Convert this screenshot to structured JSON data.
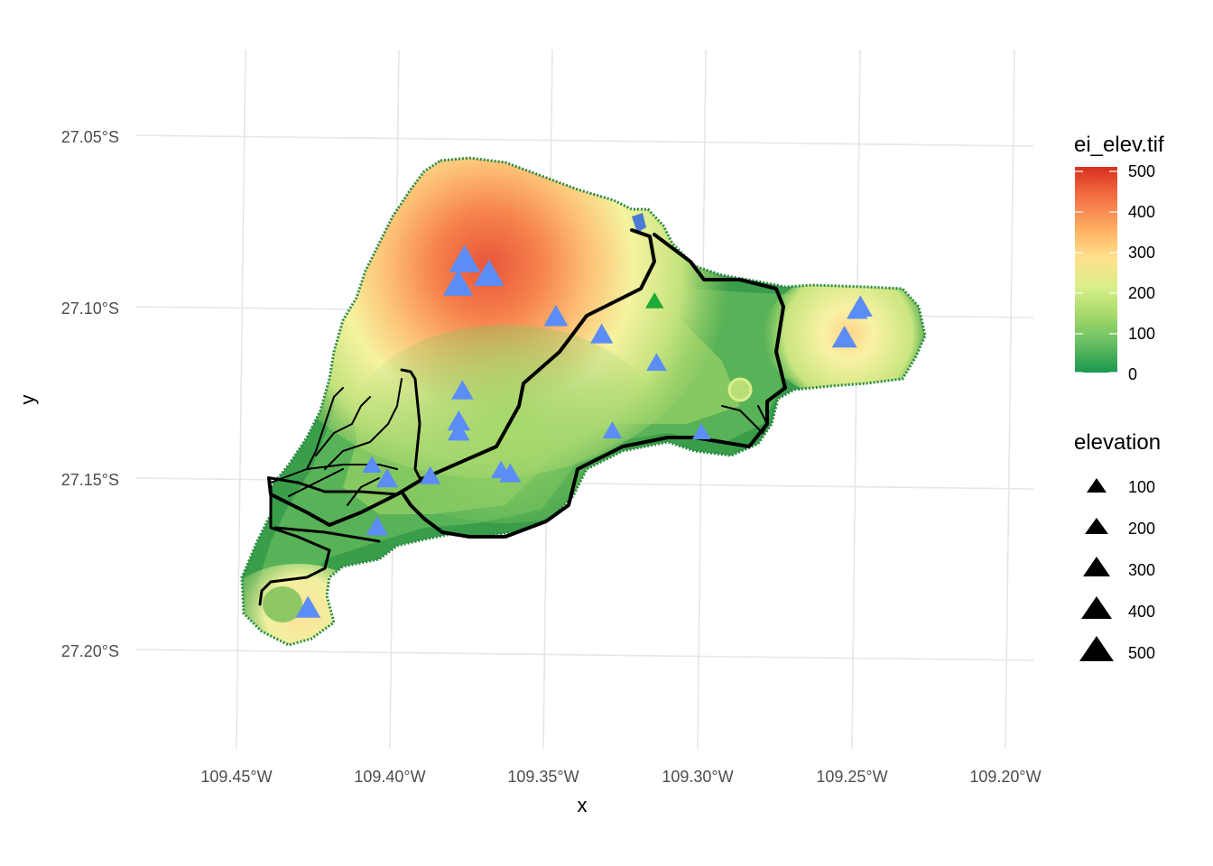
{
  "plot": {
    "x_axis_title": "x",
    "y_axis_title": "y",
    "x_tick_labels": [
      "109.45°W",
      "109.40°W",
      "109.35°W",
      "109.30°W",
      "109.25°W",
      "109.20°W"
    ],
    "y_tick_labels": [
      "27.05°S",
      "27.10°S",
      "27.15°S",
      "27.20°S"
    ]
  },
  "legend_raster": {
    "title": "ei_elev.tif",
    "breaks": [
      "500",
      "400",
      "300",
      "200",
      "100",
      "0"
    ],
    "colors": [
      "#d7301f",
      "#f46d43",
      "#fdae61",
      "#fee08b",
      "#d9ef8b",
      "#a6d96a",
      "#66bd63",
      "#1a9850"
    ]
  },
  "legend_points": {
    "title": "elevation",
    "labels": [
      "100",
      "200",
      "300",
      "400",
      "500"
    ]
  },
  "map_data": {
    "crs_units": "degrees",
    "peaks_blue": [
      {
        "lon": -109.378,
        "lat": -27.086,
        "elev": 510
      },
      {
        "lon": -109.37,
        "lat": -27.09,
        "elev": 480
      },
      {
        "lon": -109.38,
        "lat": -27.093,
        "elev": 470
      },
      {
        "lon": -109.348,
        "lat": -27.102,
        "elev": 300
      },
      {
        "lon": -109.333,
        "lat": -27.107,
        "elev": 250
      },
      {
        "lon": -109.315,
        "lat": -27.115,
        "elev": 180
      },
      {
        "lon": -109.378,
        "lat": -27.124,
        "elev": 230
      },
      {
        "lon": -109.379,
        "lat": -27.133,
        "elev": 260
      },
      {
        "lon": -109.379,
        "lat": -27.136,
        "elev": 230
      },
      {
        "lon": -109.329,
        "lat": -27.135,
        "elev": 150
      },
      {
        "lon": -109.3,
        "lat": -27.135,
        "elev": 120
      },
      {
        "lon": -109.407,
        "lat": -27.146,
        "elev": 150
      },
      {
        "lon": -109.402,
        "lat": -27.15,
        "elev": 220
      },
      {
        "lon": -109.388,
        "lat": -27.149,
        "elev": 190
      },
      {
        "lon": -109.365,
        "lat": -27.147,
        "elev": 170
      },
      {
        "lon": -109.362,
        "lat": -27.148,
        "elev": 220
      },
      {
        "lon": -109.405,
        "lat": -27.164,
        "elev": 230
      },
      {
        "lon": -109.427,
        "lat": -27.188,
        "elev": 320
      },
      {
        "lon": -109.249,
        "lat": -27.098,
        "elev": 300
      },
      {
        "lon": -109.25,
        "lat": -27.099,
        "elev": 200
      },
      {
        "lon": -109.254,
        "lat": -27.107,
        "elev": 320
      }
    ],
    "peaks_green": [
      {
        "lon": -109.316,
        "lat": -27.097,
        "elev": 120
      }
    ]
  }
}
